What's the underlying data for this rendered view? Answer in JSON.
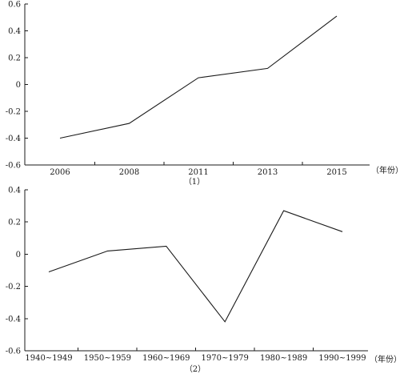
{
  "chart_data": [
    {
      "type": "line",
      "panel_label": "（1）",
      "xlabel": "（年份）",
      "categories": [
        "2006",
        "2008",
        "2011",
        "2013",
        "2015"
      ],
      "values": [
        -0.4,
        -0.29,
        0.05,
        0.12,
        0.51
      ],
      "ylim": [
        -0.6,
        0.6
      ],
      "yticks": [
        "-0.6",
        "-0.4",
        "-0.2",
        "0",
        "0.2",
        "0.4",
        "0.6"
      ],
      "grid": false
    },
    {
      "type": "line",
      "panel_label": "（2）",
      "xlabel": "（年份）",
      "categories": [
        "1940~1949",
        "1950~1959",
        "1960~1969",
        "1970~1979",
        "1980~1989",
        "1990~1999"
      ],
      "values": [
        -0.11,
        0.02,
        0.05,
        -0.42,
        0.27,
        0.14
      ],
      "ylim": [
        -0.6,
        0.4
      ],
      "yticks": [
        "-0.6",
        "-0.4",
        "-0.2",
        "0",
        "0.2",
        "0.4"
      ],
      "grid": false
    }
  ]
}
